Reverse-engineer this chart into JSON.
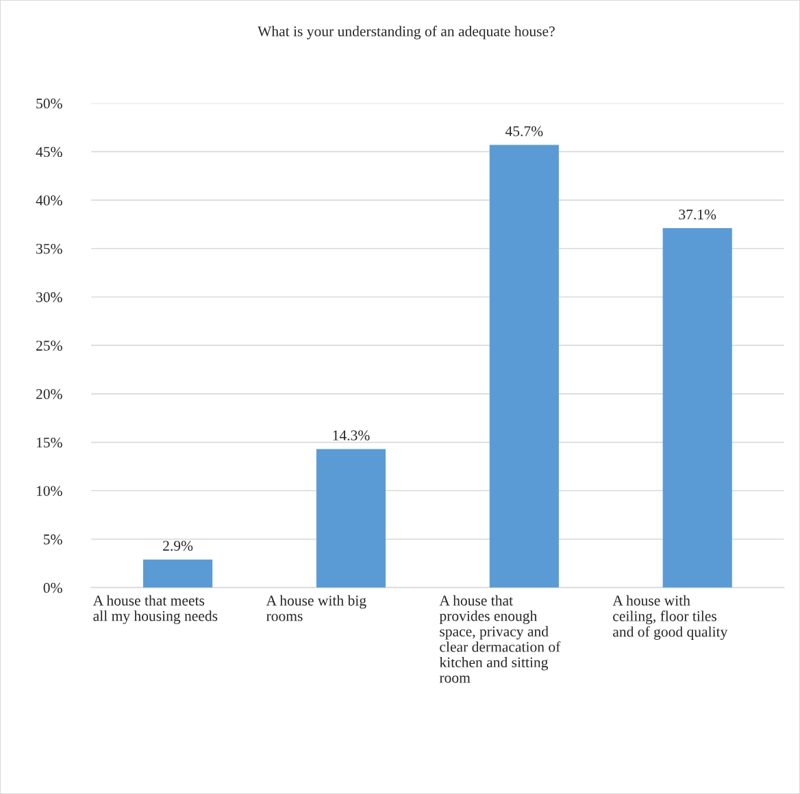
{
  "chart_data": {
    "type": "bar",
    "title": "What is your understanding of an adequate house?",
    "categories": [
      "A house that meets\nall my housing needs",
      "A house with big\nrooms",
      "A house that\nprovides enough\nspace, privacy and\nclear dermacation of\nkitchen and sitting\nroom",
      "A house with\nceiling, floor tiles\nand of good quality"
    ],
    "values": [
      2.9,
      14.3,
      45.7,
      37.1
    ],
    "value_labels": [
      "2.9%",
      "14.3%",
      "45.7%",
      "37.1%"
    ],
    "color": "#5b9bd5",
    "ylim": [
      0,
      50
    ],
    "yticks": [
      {
        "value": 0,
        "label": "0%"
      },
      {
        "value": 5,
        "label": "5%"
      },
      {
        "value": 10,
        "label": "10%"
      },
      {
        "value": 15,
        "label": "15%"
      },
      {
        "value": 20,
        "label": "20%"
      },
      {
        "value": 25,
        "label": "25%"
      },
      {
        "value": 30,
        "label": "30%"
      },
      {
        "value": 35,
        "label": "35%"
      },
      {
        "value": 40,
        "label": "40%"
      },
      {
        "value": 45,
        "label": "45%"
      },
      {
        "value": 50,
        "label": "50%"
      }
    ],
    "grid": "y"
  }
}
